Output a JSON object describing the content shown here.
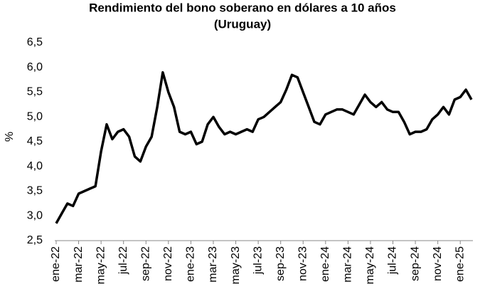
{
  "chart_data": {
    "type": "line",
    "title": "Rendimiento del bono soberano en dólares a 10 años",
    "subtitle": "(Uruguay)",
    "y_label": "%",
    "color": "#000000",
    "categories": [
      "ene-22",
      null,
      null,
      null,
      "mar-22",
      null,
      null,
      null,
      "may-22",
      null,
      null,
      null,
      "jul-22",
      null,
      null,
      null,
      "sep-22",
      null,
      null,
      null,
      "nov-22",
      null,
      null,
      null,
      "ene-23",
      null,
      null,
      null,
      "mar-23",
      null,
      null,
      null,
      "may-23",
      null,
      null,
      null,
      "jul-23",
      null,
      null,
      null,
      "sep-23",
      null,
      null,
      null,
      "nov-23",
      null,
      null,
      null,
      "ene-24",
      null,
      null,
      null,
      "mar-24",
      null,
      null,
      null,
      "may-24",
      null,
      null,
      null,
      "jul-24",
      null,
      null,
      null,
      "sep-24",
      null,
      null,
      null,
      "nov-24",
      null,
      null,
      null,
      "ene-25",
      null,
      null
    ],
    "values": [
      2.85,
      3.05,
      3.25,
      3.2,
      3.45,
      3.5,
      3.55,
      3.6,
      4.3,
      4.85,
      4.55,
      4.7,
      4.75,
      4.6,
      4.2,
      4.1,
      4.4,
      4.6,
      5.2,
      5.9,
      5.5,
      5.2,
      4.7,
      4.65,
      4.7,
      4.45,
      4.5,
      4.85,
      5.0,
      4.8,
      4.65,
      4.7,
      4.65,
      4.7,
      4.75,
      4.7,
      4.95,
      5.0,
      5.1,
      5.2,
      5.3,
      5.55,
      5.85,
      5.8,
      5.5,
      5.2,
      4.9,
      4.85,
      5.05,
      5.1,
      5.15,
      5.15,
      5.1,
      5.05,
      5.25,
      5.45,
      5.3,
      5.2,
      5.3,
      5.15,
      5.1,
      5.1,
      4.9,
      4.65,
      4.7,
      4.7,
      4.75,
      4.95,
      5.05,
      5.2,
      5.05,
      5.35,
      5.4,
      5.55,
      5.35
    ],
    "ylim": [
      2.5,
      6.5
    ],
    "yticks": [
      {
        "value": 2.5,
        "label": "2,5"
      },
      {
        "value": 3,
        "label": "3,0"
      },
      {
        "value": 3.5,
        "label": "3,5"
      },
      {
        "value": 4,
        "label": "4,0"
      },
      {
        "value": 4.5,
        "label": "4,5"
      },
      {
        "value": 5,
        "label": "5,0"
      },
      {
        "value": 5.5,
        "label": "5,5"
      },
      {
        "value": 6,
        "label": "6,0"
      },
      {
        "value": 6.5,
        "label": "6,5"
      }
    ],
    "grid": false
  }
}
